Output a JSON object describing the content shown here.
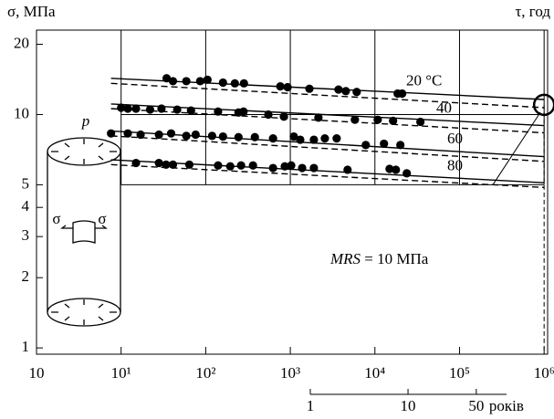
{
  "chart_data": {
    "type": "scatter",
    "y_axis_label": "σ, МПа",
    "x_axis_label": "τ, год",
    "log_x": true,
    "log_y": true,
    "grid": true,
    "xlim": [
      1,
      1100000
    ],
    "ylim": [
      0.94,
      23
    ],
    "xticks": [
      {
        "value": 1,
        "label": "10"
      },
      {
        "value": 10,
        "label": "10¹"
      },
      {
        "value": 100,
        "label": "10²"
      },
      {
        "value": 1000,
        "label": "10³"
      },
      {
        "value": 10000,
        "label": "10⁴"
      },
      {
        "value": 100000,
        "label": "10⁵"
      },
      {
        "value": 1000000,
        "label": "10⁶"
      }
    ],
    "yticks": [
      1,
      2,
      3,
      4,
      5,
      10,
      20
    ],
    "x2lim": [
      1,
      102
    ],
    "x2ticks": [
      1,
      10,
      50
    ],
    "x2_axis_label": "років",
    "annotation": {
      "prefix": "MRS",
      "text": "= 10 МПа"
    },
    "highlight": {
      "x": 1000000,
      "y": 11
    },
    "figure_labels": {
      "pressure": "p",
      "stress_left": "σ",
      "stress_right": "σ"
    },
    "series": [
      {
        "name": "20 °C",
        "color": "#000000",
        "x": [
          34.5,
          41,
          59,
          86,
          105,
          160,
          221,
          283,
          762,
          929,
          1682,
          3715,
          4529,
          6095,
          18570,
          21000
        ],
        "values": [
          14.3,
          13.9,
          13.9,
          13.9,
          14.1,
          13.7,
          13.6,
          13.6,
          13.2,
          13.1,
          12.9,
          12.8,
          12.6,
          12.5,
          12.3,
          12.3
        ],
        "fit": {
          "x": [
            7.6,
            1000000
          ],
          "values": [
            14.3,
            11.6
          ]
        },
        "lower": {
          "x": [
            7.6,
            1000000
          ],
          "values": [
            13.6,
            10.7
          ]
        }
      },
      {
        "name": "40",
        "color": "#000000",
        "x": [
          10,
          12,
          15,
          22,
          30,
          46,
          67,
          140,
          244,
          280,
          550,
          840,
          2150,
          5800,
          10800,
          16400,
          34500
        ],
        "values": [
          10.7,
          10.6,
          10.6,
          10.5,
          10.6,
          10.5,
          10.4,
          10.3,
          10.2,
          10.3,
          10.0,
          9.8,
          9.7,
          9.5,
          9.5,
          9.4,
          9.3
        ],
        "fit": {
          "x": [
            7.6,
            1000000
          ],
          "values": [
            11.1,
            8.97
          ]
        },
        "lower": {
          "x": [
            7.6,
            1000000
          ],
          "values": [
            10.6,
            8.35
          ]
        }
      },
      {
        "name": "60",
        "color": "#000000",
        "x": [
          7.6,
          12,
          17,
          28,
          39,
          59,
          76,
          119,
          160,
          244,
          381,
          625,
          1100,
          1310,
          1900,
          2560,
          3530,
          7800,
          12800,
          20000
        ],
        "values": [
          8.3,
          8.3,
          8.2,
          8.2,
          8.3,
          8.1,
          8.2,
          8.1,
          8.05,
          8.0,
          8.0,
          7.9,
          8.05,
          7.8,
          7.8,
          7.9,
          7.9,
          7.4,
          7.5,
          7.4
        ],
        "fit": {
          "x": [
            7.6,
            1000000
          ],
          "values": [
            8.5,
            6.6
          ]
        },
        "lower": {
          "x": [
            7.6,
            1000000
          ],
          "values": [
            8.1,
            6.3
          ]
        }
      },
      {
        "name": "80",
        "color": "#000000",
        "x": [
          15,
          28,
          34,
          41,
          64,
          140,
          195,
          262,
          362,
          625,
          861,
          1025,
          1380,
          1900,
          4750,
          14900,
          17700,
          23800
        ],
        "values": [
          6.2,
          6.2,
          6.1,
          6.1,
          6.1,
          6.05,
          6.0,
          6.05,
          6.05,
          5.9,
          6.0,
          6.05,
          5.9,
          5.9,
          5.8,
          5.85,
          5.8,
          5.6
        ],
        "fit": {
          "x": [
            7.6,
            1000000
          ],
          "values": [
            6.4,
            5.1
          ]
        },
        "lower": {
          "x": [
            7.6,
            1000000
          ],
          "values": [
            6.1,
            4.87
          ]
        }
      }
    ]
  }
}
